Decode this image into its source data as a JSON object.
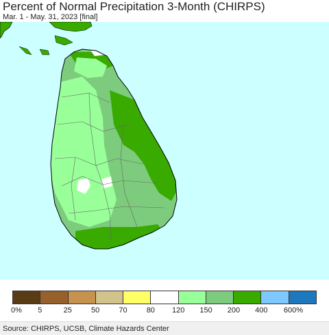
{
  "title": "Percent of Normal Precipitation 3-Month (CHIRPS)",
  "subtitle": "Mar. 1 - May. 31, 2023 [final]",
  "colors": {
    "ocean": "#ccffff",
    "land_mainland": "#39aa00",
    "level_120_150": "#99ff99",
    "level_150_200": "#7dcc7d",
    "level_200_400": "#39aa00",
    "level_80_120": "#ffffff"
  },
  "legend": {
    "swatches": [
      "#5a3c14",
      "#98602a",
      "#c6924e",
      "#d2c38a",
      "#ffff66",
      "#ffffff",
      "#99ff99",
      "#7dcc7d",
      "#39aa00",
      "#7dc8ff",
      "#1e78be"
    ],
    "labels": [
      "0%",
      "5",
      "25",
      "50",
      "70",
      "80",
      "120",
      "150",
      "200",
      "400",
      "600%"
    ]
  },
  "source": "Source: CHIRPS, UCSB, Climate Hazards Center"
}
